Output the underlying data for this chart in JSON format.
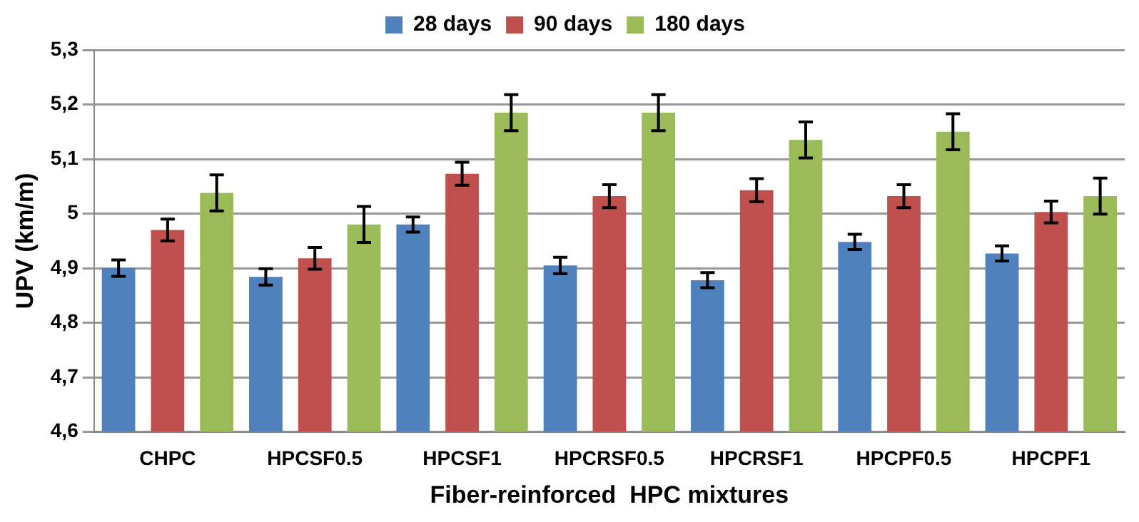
{
  "chart_data": {
    "type": "bar",
    "xlabel": "Fiber-reinforced  HPC mixtures",
    "ylabel": "UPV (km/m)",
    "categories": [
      "CHPC",
      "HPCSF0.5",
      "HPCSF1",
      "HPCRSF0.5",
      "HPCRSF1",
      "HPCPF0.5",
      "HPCPF1"
    ],
    "series": [
      {
        "name": "28 days",
        "color": "#4f81bd",
        "values": [
          4.9,
          4.884,
          4.98,
          4.905,
          4.878,
          4.948,
          4.927
        ],
        "errors": [
          0.015,
          0.015,
          0.014,
          0.015,
          0.014,
          0.014,
          0.014
        ]
      },
      {
        "name": "90 days",
        "color": "#c0504d",
        "values": [
          4.97,
          4.918,
          5.073,
          5.032,
          5.043,
          5.032,
          5.003
        ],
        "errors": [
          0.02,
          0.02,
          0.021,
          0.021,
          0.021,
          0.021,
          0.02
        ]
      },
      {
        "name": "180 days",
        "color": "#9bbb59",
        "values": [
          5.038,
          4.98,
          5.185,
          5.185,
          5.135,
          5.15,
          5.032
        ],
        "errors": [
          0.033,
          0.033,
          0.033,
          0.033,
          0.033,
          0.033,
          0.033
        ]
      }
    ],
    "ylim": [
      4.6,
      5.3
    ],
    "yticks": [
      {
        "value": 4.6,
        "label": "4,6"
      },
      {
        "value": 4.7,
        "label": "4,7"
      },
      {
        "value": 4.8,
        "label": "4,8"
      },
      {
        "value": 4.9,
        "label": "4,9"
      },
      {
        "value": 5,
        "label": "5"
      },
      {
        "value": 5.1,
        "label": "5,1"
      },
      {
        "value": 5.2,
        "label": "5,2"
      },
      {
        "value": 5.3,
        "label": "5,3"
      }
    ],
    "grid": "y",
    "legend": "top"
  }
}
